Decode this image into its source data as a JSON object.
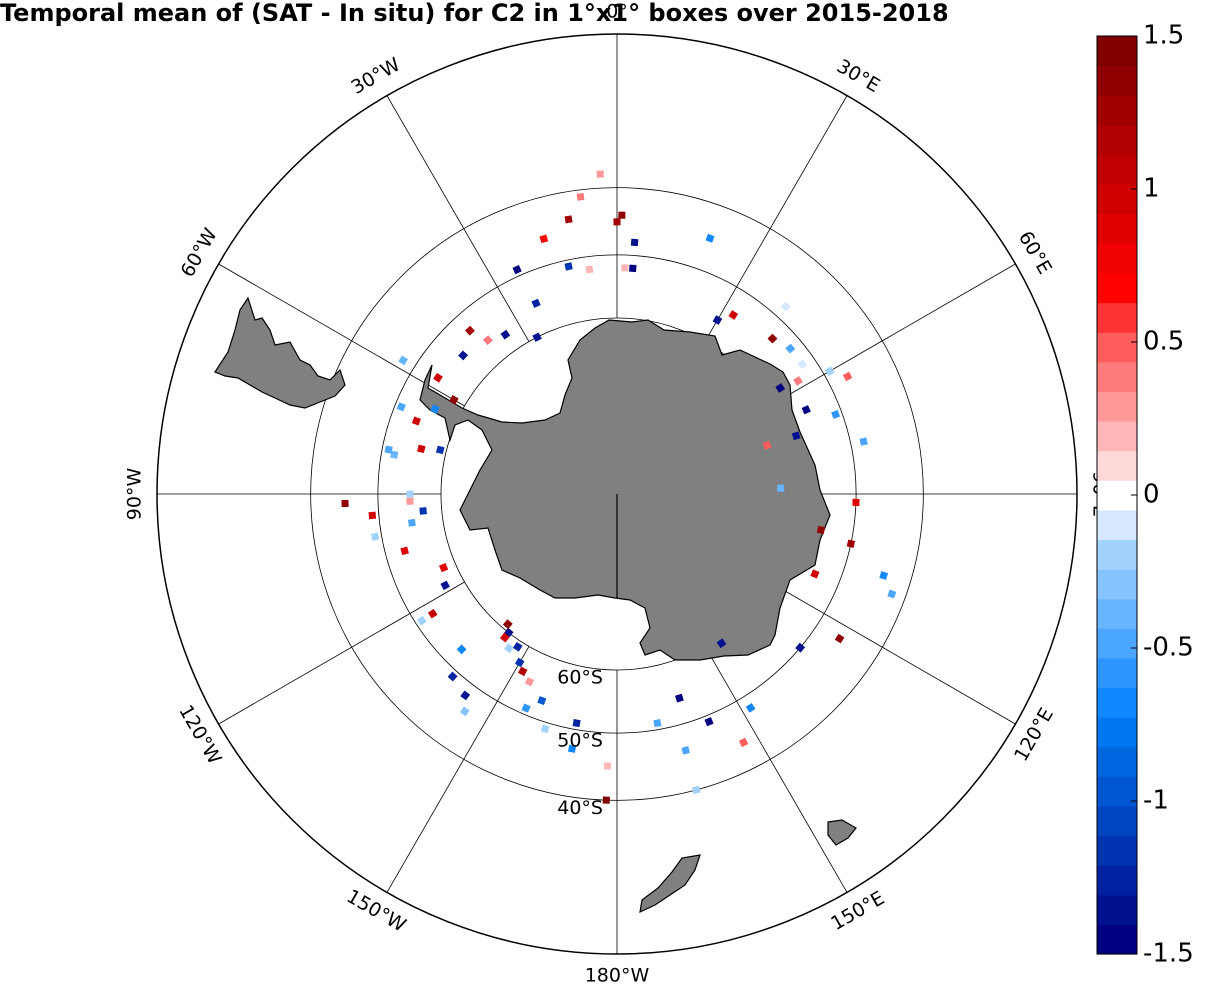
{
  "title": "Temporal mean of (SAT - In situ) for C2 in 1°x1° boxes over 2015-2018",
  "colorbar": {
    "range": [
      -1.5,
      1.5
    ],
    "tick_labels": [
      {
        "value": 1.5,
        "label": "1.5"
      },
      {
        "value": 1.0,
        "label": "1"
      },
      {
        "value": 0.5,
        "label": "0.5"
      },
      {
        "value": 0.0,
        "label": "0"
      },
      {
        "value": -0.5,
        "label": "-0.5"
      },
      {
        "value": -1.0,
        "label": "-1"
      },
      {
        "value": -1.5,
        "label": "-1.5"
      }
    ],
    "levels": 30,
    "colors": [
      "#000080",
      "#001190",
      "#0022A0",
      "#0033B0",
      "#0044C0",
      "#0055D0",
      "#0066E0",
      "#0077F0",
      "#1188FF",
      "#2E97FF",
      "#4BA6FF",
      "#68B5FF",
      "#85C4FF",
      "#A2D3FF",
      "#D6E8FF",
      "#FFFFFF",
      "#FFD8D8",
      "#FFB6B6",
      "#FF9898",
      "#FF7A7A",
      "#FF5C5C",
      "#FF3333",
      "#FF0000",
      "#F00000",
      "#E00000",
      "#D00000",
      "#C00000",
      "#B00000",
      "#A00000",
      "#900000",
      "#800000"
    ]
  },
  "map": {
    "projection": "south polar stereographic",
    "latitude_labels": [
      "60°S",
      "50°S",
      "40°S"
    ],
    "longitude_labels": [
      "0°",
      "30°E",
      "60°E",
      "90°E",
      "120°E",
      "150°E",
      "180°W",
      "150°W",
      "120°W",
      "90°W",
      "60°W",
      "30°W"
    ],
    "land_color": "#808080",
    "boxes": [
      {
        "lon": -7,
        "lat": -41,
        "value": 0.4
      },
      {
        "lon": -3,
        "lat": -38,
        "value": 0.3
      },
      {
        "lon": -16,
        "lat": -46,
        "value": 0.7
      },
      {
        "lon": -10,
        "lat": -44,
        "value": 1.3
      },
      {
        "lon": -24,
        "lat": -49,
        "value": -1.5
      },
      {
        "lon": -12,
        "lat": -51,
        "value": -1.2
      },
      {
        "lon": -7,
        "lat": -52,
        "value": 0.2
      },
      {
        "lon": -23,
        "lat": -55,
        "value": -1.3
      },
      {
        "lon": -27,
        "lat": -60,
        "value": -1.4
      },
      {
        "lon": -35,
        "lat": -57,
        "value": -1.4
      },
      {
        "lon": -42,
        "lat": -53,
        "value": 1.3
      },
      {
        "lon": -40,
        "lat": -56,
        "value": 0.4
      },
      {
        "lon": -48,
        "lat": -55,
        "value": -1.4
      },
      {
        "lon": -58,
        "lat": -48,
        "value": -0.4
      },
      {
        "lon": -57,
        "lat": -54,
        "value": 1.0
      },
      {
        "lon": -60,
        "lat": -58,
        "value": 1.4
      },
      {
        "lon": -65,
        "lat": -56,
        "value": -0.7
      },
      {
        "lon": -68,
        "lat": -51,
        "value": -0.5
      },
      {
        "lon": -70,
        "lat": -54,
        "value": 1.0
      },
      {
        "lon": -79,
        "lat": -51,
        "value": -0.5
      },
      {
        "lon": -77,
        "lat": -56,
        "value": 1.0
      },
      {
        "lon": -80,
        "lat": -52,
        "value": -0.4
      },
      {
        "lon": -76,
        "lat": -59,
        "value": -1.2
      },
      {
        "lon": -92,
        "lat": -45,
        "value": 1.4
      },
      {
        "lon": -95,
        "lat": -49,
        "value": 1.0
      },
      {
        "lon": -90,
        "lat": -55,
        "value": -0.2
      },
      {
        "lon": -92,
        "lat": -55,
        "value": 0.3
      },
      {
        "lon": -95,
        "lat": -57,
        "value": -1.2
      },
      {
        "lon": -98,
        "lat": -55,
        "value": -0.5
      },
      {
        "lon": -100,
        "lat": -49,
        "value": -0.2
      },
      {
        "lon": -105,
        "lat": -53,
        "value": 0.9
      },
      {
        "lon": -113,
        "lat": -58,
        "value": 0.9
      },
      {
        "lon": -118,
        "lat": -57,
        "value": -1.4
      },
      {
        "lon": -123,
        "lat": -53,
        "value": 1.1
      },
      {
        "lon": -123,
        "lat": -51,
        "value": -0.2
      },
      {
        "lon": -135,
        "lat": -53,
        "value": -0.7
      },
      {
        "lon": -138,
        "lat": -49,
        "value": -1.3
      },
      {
        "lon": -143,
        "lat": -48,
        "value": -1.4
      },
      {
        "lon": -145,
        "lat": -46,
        "value": -0.3
      },
      {
        "lon": -142,
        "lat": -60,
        "value": -1.4
      },
      {
        "lon": -140,
        "lat": -61,
        "value": 1.4
      },
      {
        "lon": -142,
        "lat": -59,
        "value": 1.0
      },
      {
        "lon": -145,
        "lat": -58,
        "value": -0.2
      },
      {
        "lon": -147,
        "lat": -59,
        "value": -1.3
      },
      {
        "lon": -150,
        "lat": -57,
        "value": -1.2
      },
      {
        "lon": -152,
        "lat": -56,
        "value": 1.2
      },
      {
        "lon": -155,
        "lat": -55,
        "value": 0.3
      },
      {
        "lon": -160,
        "lat": -53,
        "value": -1.0
      },
      {
        "lon": -157,
        "lat": -51,
        "value": -0.6
      },
      {
        "lon": -163,
        "lat": -49,
        "value": -0.2
      },
      {
        "lon": -170,
        "lat": -51,
        "value": -1.3
      },
      {
        "lon": -170,
        "lat": -47,
        "value": -0.7
      },
      {
        "lon": -178,
        "lat": -45,
        "value": 0.2
      },
      {
        "lon": -178,
        "lat": -40,
        "value": 1.5
      },
      {
        "lon": 170,
        "lat": -51,
        "value": -0.5
      },
      {
        "lon": 163,
        "lat": -54,
        "value": -1.5
      },
      {
        "lon": 158,
        "lat": -49,
        "value": -1.5
      },
      {
        "lon": 165,
        "lat": -46,
        "value": -0.5
      },
      {
        "lon": 165,
        "lat": -40,
        "value": -0.2
      },
      {
        "lon": 153,
        "lat": -44,
        "value": 0.5
      },
      {
        "lon": 148,
        "lat": -48,
        "value": -0.7
      },
      {
        "lon": 145,
        "lat": -59,
        "value": -1.4
      },
      {
        "lon": 130,
        "lat": -50,
        "value": -1.4
      },
      {
        "lon": 123,
        "lat": -46,
        "value": 1.4
      },
      {
        "lon": 112,
        "lat": -54,
        "value": 1.0
      },
      {
        "lon": 100,
        "lat": -55,
        "value": 1.4
      },
      {
        "lon": 102,
        "lat": -50,
        "value": 1.3
      },
      {
        "lon": 107,
        "lat": -44,
        "value": -0.7
      },
      {
        "lon": 110,
        "lat": -42,
        "value": -0.5
      },
      {
        "lon": 92,
        "lat": -50,
        "value": 0.9
      },
      {
        "lon": 88,
        "lat": -62,
        "value": -0.4
      },
      {
        "lon": 78,
        "lat": -48,
        "value": -0.5
      },
      {
        "lon": 70,
        "lat": -51,
        "value": -0.6
      },
      {
        "lon": 72,
        "lat": -58,
        "value": -1.4
      },
      {
        "lon": 66,
        "lat": -55,
        "value": -1.5
      },
      {
        "lon": 72,
        "lat": -63,
        "value": 0.5
      },
      {
        "lon": 63,
        "lat": -47,
        "value": 0.5
      },
      {
        "lon": 60,
        "lat": -49,
        "value": -0.2
      },
      {
        "lon": 58,
        "lat": -54,
        "value": 0.4
      },
      {
        "lon": 57,
        "lat": -57,
        "value": -1.5
      },
      {
        "lon": 55,
        "lat": -52,
        "value": -0.1
      },
      {
        "lon": 50,
        "lat": -52,
        "value": -0.5
      },
      {
        "lon": 45,
        "lat": -53,
        "value": 1.4
      },
      {
        "lon": 42,
        "lat": -48,
        "value": -0.1
      },
      {
        "lon": 33,
        "lat": -54,
        "value": 1.0
      },
      {
        "lon": 30,
        "lat": -56,
        "value": -1.4
      },
      {
        "lon": 20,
        "lat": -45,
        "value": -0.7
      },
      {
        "lon": 4,
        "lat": -48,
        "value": -1.4
      },
      {
        "lon": 4,
        "lat": -52,
        "value": -1.5
      },
      {
        "lon": 1,
        "lat": -44,
        "value": 1.4
      },
      {
        "lon": 0,
        "lat": -45,
        "value": 1.3
      },
      {
        "lon": 2,
        "lat": -52,
        "value": 0.2
      }
    ]
  }
}
